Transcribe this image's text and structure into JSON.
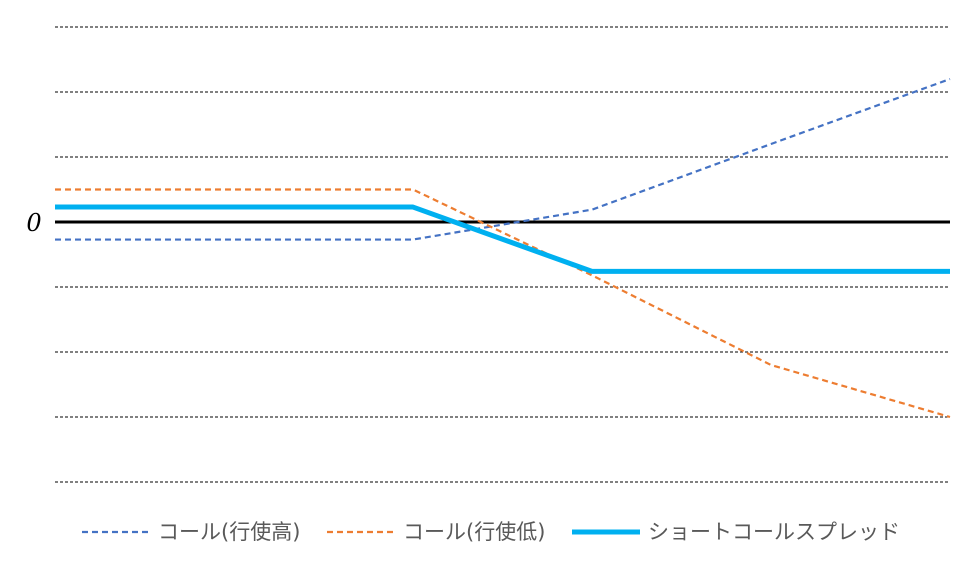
{
  "chart_data": {
    "type": "line",
    "x": [
      0,
      1,
      2,
      3,
      4,
      5
    ],
    "xlim": [
      0,
      5
    ],
    "ylim": [
      -4,
      3
    ],
    "grid": true,
    "legend_position": "bottom",
    "zero_label": "0",
    "series": [
      {
        "name": "コール(行使高)",
        "color": "#4472C4",
        "style": "dashed",
        "values": [
          -0.27,
          -0.27,
          -0.27,
          0.19,
          1.2,
          2.2
        ]
      },
      {
        "name": "コール(行使低)",
        "color": "#ED7D31",
        "style": "dashed",
        "values": [
          0.5,
          0.5,
          0.5,
          -0.82,
          -2.2,
          -3.0
        ]
      },
      {
        "name": "ショートコールスプレッド",
        "color": "#00B0F0",
        "style": "solid",
        "values": [
          0.23,
          0.23,
          0.23,
          -0.76,
          -0.76,
          -0.76
        ]
      }
    ]
  }
}
